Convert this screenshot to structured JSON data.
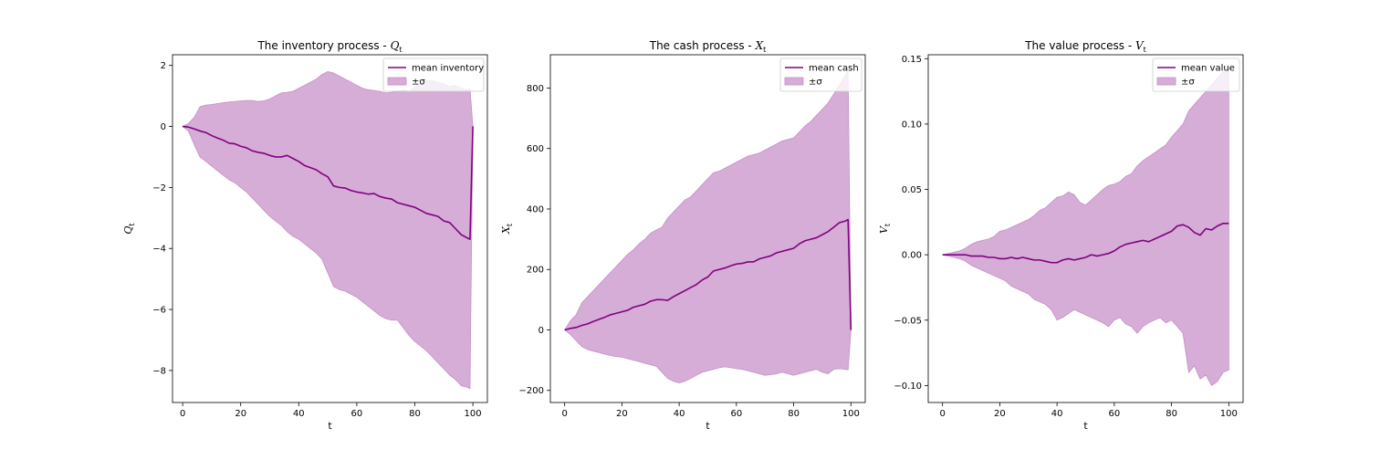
{
  "chart_data": [
    {
      "type": "line",
      "title": "The inventory process - ",
      "title_sym": "Q",
      "title_sub": "t",
      "xlabel": "t",
      "ylabel_sym": "Q",
      "ylabel_sub": "t",
      "xlim": [
        -3.5,
        105
      ],
      "ylim": [
        -9.05,
        2.35
      ],
      "xticks": [
        0,
        20,
        40,
        60,
        80,
        100
      ],
      "yticks": [
        2,
        0,
        -2,
        -4,
        -6,
        -8
      ],
      "legend": {
        "location": "upper-right",
        "line_label": "mean inventory",
        "band_label": "±σ"
      },
      "colors": {
        "line": "#800080",
        "band": "#d6add6"
      },
      "series": [
        {
          "x": [
            0,
            2,
            4,
            6,
            8,
            10,
            12,
            14,
            16,
            18,
            20,
            22,
            24,
            26,
            28,
            30,
            32,
            34,
            36,
            38,
            40,
            42,
            44,
            46,
            48,
            50,
            52,
            54,
            56,
            58,
            60,
            62,
            64,
            66,
            68,
            70,
            72,
            74,
            76,
            78,
            80,
            82,
            84,
            86,
            88,
            90,
            92,
            94,
            96,
            98,
            99,
            100
          ],
          "mean": [
            0,
            -0.02,
            -0.08,
            -0.15,
            -0.2,
            -0.3,
            -0.38,
            -0.45,
            -0.55,
            -0.57,
            -0.65,
            -0.7,
            -0.8,
            -0.85,
            -0.88,
            -0.95,
            -1.0,
            -1.0,
            -0.95,
            -1.05,
            -1.15,
            -1.28,
            -1.35,
            -1.42,
            -1.55,
            -1.65,
            -1.95,
            -2.0,
            -2.02,
            -2.1,
            -2.15,
            -2.18,
            -2.22,
            -2.2,
            -2.3,
            -2.35,
            -2.38,
            -2.5,
            -2.55,
            -2.6,
            -2.65,
            -2.75,
            -2.85,
            -2.9,
            -2.95,
            -3.1,
            -3.15,
            -3.35,
            -3.55,
            -3.65,
            -3.7,
            0
          ],
          "upper": [
            0,
            0.1,
            0.3,
            0.65,
            0.7,
            0.72,
            0.75,
            0.78,
            0.8,
            0.82,
            0.84,
            0.85,
            0.85,
            0.82,
            0.84,
            0.9,
            1.0,
            1.1,
            1.12,
            1.15,
            1.25,
            1.35,
            1.45,
            1.55,
            1.7,
            1.8,
            1.75,
            1.65,
            1.55,
            1.45,
            1.35,
            1.25,
            1.2,
            1.18,
            1.15,
            1.1,
            1.12,
            1.15,
            1.2,
            1.15,
            1.3,
            1.4,
            1.5,
            1.5,
            1.45,
            1.4,
            1.3,
            1.35,
            1.25,
            1.2,
            1.25,
            0
          ],
          "lower": [
            0,
            -0.15,
            -0.6,
            -1.0,
            -1.15,
            -1.3,
            -1.45,
            -1.6,
            -1.75,
            -1.85,
            -2.0,
            -2.15,
            -2.35,
            -2.55,
            -2.75,
            -2.95,
            -3.1,
            -3.25,
            -3.45,
            -3.6,
            -3.7,
            -3.85,
            -4.0,
            -4.15,
            -4.35,
            -4.8,
            -5.25,
            -5.35,
            -5.4,
            -5.5,
            -5.6,
            -5.75,
            -5.9,
            -6.05,
            -6.2,
            -6.3,
            -6.35,
            -6.35,
            -6.6,
            -6.85,
            -7.05,
            -7.2,
            -7.35,
            -7.55,
            -7.75,
            -7.95,
            -8.15,
            -8.3,
            -8.5,
            -8.55,
            -8.6,
            0
          ]
        }
      ]
    },
    {
      "type": "line",
      "title": "The cash process - ",
      "title_sym": "X",
      "title_sub": "t",
      "xlabel": "t",
      "ylabel_sym": "X",
      "ylabel_sub": "t",
      "xlim": [
        -5,
        105
      ],
      "ylim": [
        -240,
        910
      ],
      "xticks": [
        0,
        20,
        40,
        60,
        80,
        100
      ],
      "yticks": [
        800,
        600,
        400,
        200,
        0,
        -200
      ],
      "legend": {
        "location": "upper-right",
        "line_label": "mean cash",
        "band_label": "±σ"
      },
      "colors": {
        "line": "#800080",
        "band": "#d6add6"
      },
      "series": [
        {
          "x": [
            0,
            2,
            4,
            6,
            8,
            10,
            12,
            14,
            16,
            18,
            20,
            22,
            24,
            26,
            28,
            30,
            32,
            34,
            36,
            38,
            40,
            42,
            44,
            46,
            48,
            50,
            52,
            54,
            56,
            58,
            60,
            62,
            64,
            66,
            68,
            70,
            72,
            74,
            76,
            78,
            80,
            82,
            84,
            86,
            88,
            90,
            92,
            94,
            96,
            98,
            99,
            100
          ],
          "mean": [
            0,
            5,
            8,
            15,
            20,
            28,
            35,
            42,
            50,
            55,
            60,
            65,
            75,
            80,
            85,
            95,
            100,
            100,
            98,
            110,
            120,
            130,
            140,
            150,
            165,
            175,
            195,
            200,
            205,
            212,
            218,
            220,
            225,
            225,
            235,
            240,
            245,
            255,
            260,
            265,
            270,
            285,
            295,
            300,
            305,
            315,
            325,
            340,
            355,
            360,
            365,
            0
          ],
          "upper": [
            0,
            30,
            50,
            90,
            110,
            130,
            150,
            170,
            190,
            210,
            230,
            250,
            265,
            285,
            300,
            320,
            330,
            340,
            370,
            390,
            410,
            430,
            440,
            460,
            480,
            500,
            520,
            525,
            535,
            545,
            555,
            565,
            575,
            580,
            585,
            595,
            605,
            615,
            625,
            630,
            635,
            655,
            675,
            690,
            710,
            730,
            750,
            780,
            810,
            840,
            860,
            0
          ],
          "lower": [
            0,
            -15,
            -35,
            -55,
            -65,
            -70,
            -75,
            -80,
            -85,
            -88,
            -90,
            -95,
            -100,
            -105,
            -110,
            -115,
            -120,
            -140,
            -160,
            -170,
            -175,
            -170,
            -160,
            -150,
            -140,
            -135,
            -130,
            -125,
            -122,
            -125,
            -128,
            -130,
            -135,
            -140,
            -145,
            -150,
            -148,
            -145,
            -140,
            -145,
            -150,
            -145,
            -140,
            -135,
            -130,
            -140,
            -145,
            -130,
            -128,
            -130,
            -132,
            0
          ]
        }
      ]
    },
    {
      "type": "line",
      "title": "The value process - ",
      "title_sym": "V",
      "title_sub": "t",
      "xlabel": "t",
      "ylabel_sym": "V",
      "ylabel_sub": "t",
      "xlim": [
        -5,
        105
      ],
      "ylim": [
        -0.113,
        0.153
      ],
      "xticks": [
        0,
        20,
        40,
        60,
        80,
        100
      ],
      "yticks": [
        0.15,
        0.1,
        0.05,
        0.0,
        -0.05,
        -0.1
      ],
      "ytick_labels": [
        "0.15",
        "0.10",
        "0.05",
        "0.00",
        "−0.05",
        "−0.10"
      ],
      "legend": {
        "location": "upper-right",
        "line_label": "mean value",
        "band_label": "±σ"
      },
      "colors": {
        "line": "#800080",
        "band": "#d6add6"
      },
      "series": [
        {
          "x": [
            0,
            2,
            4,
            6,
            8,
            10,
            12,
            14,
            16,
            18,
            20,
            22,
            24,
            26,
            28,
            30,
            32,
            34,
            36,
            38,
            40,
            42,
            44,
            46,
            48,
            50,
            52,
            54,
            56,
            58,
            60,
            62,
            64,
            66,
            68,
            70,
            72,
            74,
            76,
            78,
            80,
            82,
            84,
            86,
            88,
            90,
            92,
            94,
            96,
            98,
            100
          ],
          "mean": [
            0,
            0,
            0,
            0,
            0,
            -0.001,
            -0.001,
            -0.001,
            -0.002,
            -0.002,
            -0.003,
            -0.003,
            -0.002,
            -0.003,
            -0.002,
            -0.003,
            -0.004,
            -0.004,
            -0.005,
            -0.006,
            -0.006,
            -0.004,
            -0.003,
            -0.004,
            -0.003,
            -0.002,
            0,
            -0.001,
            0,
            0.001,
            0.003,
            0.006,
            0.008,
            0.009,
            0.01,
            0.011,
            0.01,
            0.012,
            0.014,
            0.016,
            0.018,
            0.022,
            0.023,
            0.021,
            0.017,
            0.015,
            0.02,
            0.019,
            0.022,
            0.024,
            0.024
          ],
          "upper": [
            0,
            0.001,
            0.002,
            0.003,
            0.005,
            0.008,
            0.01,
            0.011,
            0.012,
            0.014,
            0.018,
            0.019,
            0.021,
            0.023,
            0.025,
            0.027,
            0.03,
            0.034,
            0.036,
            0.04,
            0.044,
            0.045,
            0.048,
            0.046,
            0.04,
            0.038,
            0.042,
            0.046,
            0.05,
            0.053,
            0.054,
            0.056,
            0.06,
            0.062,
            0.068,
            0.072,
            0.075,
            0.078,
            0.081,
            0.084,
            0.09,
            0.095,
            0.1,
            0.11,
            0.115,
            0.12,
            0.125,
            0.13,
            0.135,
            0.14,
            0.141
          ],
          "lower": [
            0,
            -0.001,
            -0.002,
            -0.003,
            -0.005,
            -0.008,
            -0.01,
            -0.012,
            -0.014,
            -0.016,
            -0.018,
            -0.02,
            -0.024,
            -0.026,
            -0.028,
            -0.03,
            -0.034,
            -0.036,
            -0.038,
            -0.042,
            -0.05,
            -0.048,
            -0.045,
            -0.042,
            -0.044,
            -0.046,
            -0.048,
            -0.05,
            -0.052,
            -0.055,
            -0.05,
            -0.048,
            -0.053,
            -0.055,
            -0.06,
            -0.055,
            -0.052,
            -0.05,
            -0.048,
            -0.052,
            -0.05,
            -0.055,
            -0.06,
            -0.09,
            -0.085,
            -0.095,
            -0.092,
            -0.1,
            -0.097,
            -0.09,
            -0.088
          ]
        }
      ]
    }
  ]
}
